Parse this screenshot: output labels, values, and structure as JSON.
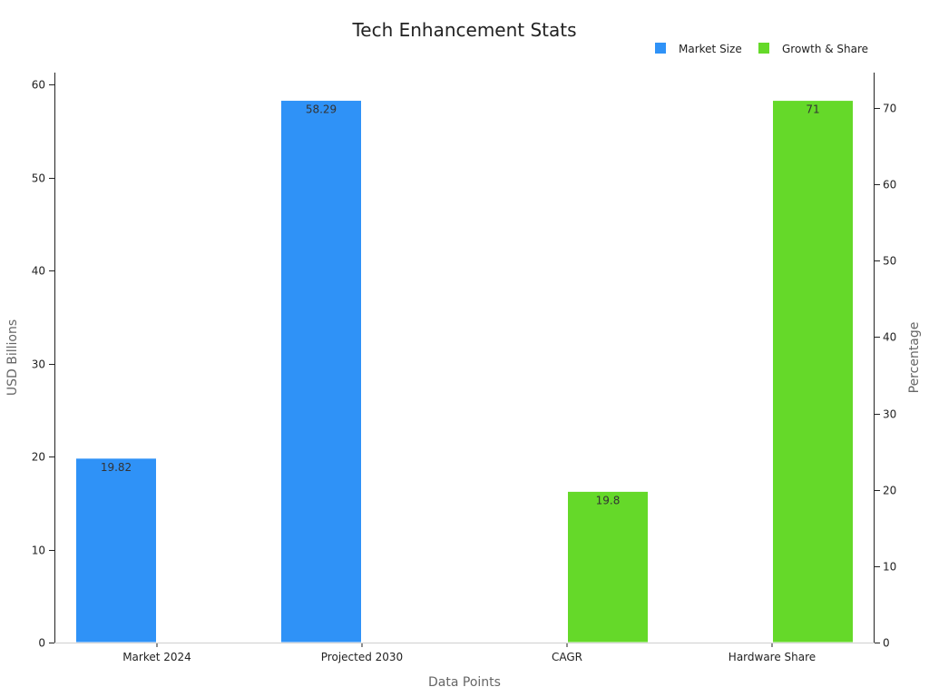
{
  "chart_data": {
    "type": "bar",
    "title": "Tech Enhancement Stats",
    "xlabel": "Data Points",
    "ylabel_left": "USD Billions",
    "ylabel_right": "Percentage",
    "categories": [
      "Market 2024",
      "Projected 2030",
      "CAGR",
      "Hardware Share"
    ],
    "ylim_left": [
      0,
      60
    ],
    "ylim_right": [
      0,
      70
    ],
    "yticks_left": [
      "0",
      "10",
      "20",
      "30",
      "40",
      "50",
      "60"
    ],
    "yticks_right": [
      "0",
      "10",
      "20",
      "30",
      "40",
      "50",
      "60",
      "70"
    ],
    "grid": false,
    "legend_position": "top-right",
    "series": [
      {
        "name": "Market Size",
        "axis": "left",
        "color": "#2f92f7",
        "values": [
          19.82,
          58.29,
          null,
          null
        ],
        "labels": [
          "19.82",
          "58.29",
          null,
          null
        ]
      },
      {
        "name": "Growth & Share",
        "axis": "right",
        "color": "#65d929",
        "values": [
          null,
          null,
          19.8,
          71
        ],
        "labels": [
          null,
          null,
          "19.8",
          "71"
        ]
      }
    ]
  }
}
